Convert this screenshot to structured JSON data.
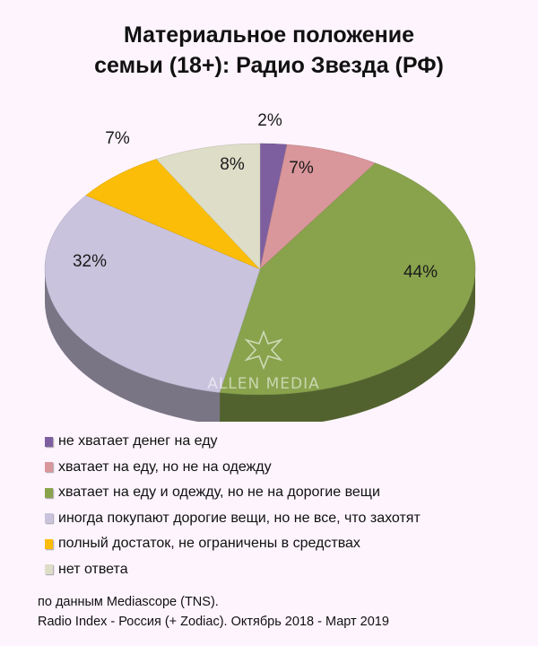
{
  "title": {
    "line1": "Материальное положение",
    "line2": "семьи (18+): Радио Звезда (РФ)"
  },
  "watermark": "ALLEN MEDIA",
  "chart_data": {
    "type": "pie",
    "title": "Материальное положение семьи (18+): Радио Звезда (РФ)",
    "legend_position": "bottom",
    "slices": [
      {
        "label": "не хватает денег на еду",
        "value": 2,
        "display": "2%",
        "color": "#7d5fa0"
      },
      {
        "label": "хватает на еду, но не на одежду",
        "value": 7,
        "display": "7%",
        "color": "#d9969b"
      },
      {
        "label": "хватает на еду и одежду, но не на дорогие вещи",
        "value": 44,
        "display": "44%",
        "color": "#88a34c"
      },
      {
        "label": "иногда покупают дорогие вещи, но не все, что захотят",
        "value": 32,
        "display": "32%",
        "color": "#c9c3dd"
      },
      {
        "label": "полный достаток, не ограничены в средствах",
        "value": 7,
        "display": "7%",
        "color": "#fbbd07"
      },
      {
        "label": "нет ответа",
        "value": 8,
        "display": "8%",
        "color": "#deddc8"
      }
    ]
  },
  "source": {
    "line1": "по данным Mediascope (TNS).",
    "line2": "Radio Index - Россия (+ Zodiac). Октябрь 2018 - Март 2019"
  }
}
